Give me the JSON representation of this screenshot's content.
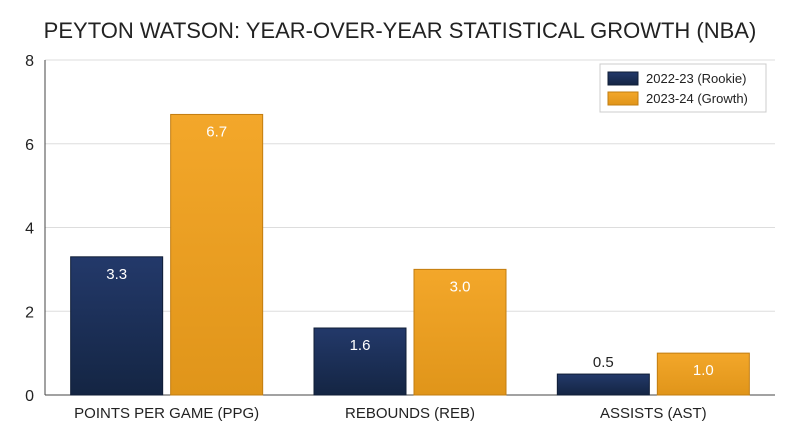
{
  "chart_data": {
    "type": "bar",
    "title": "PEYTON WATSON: YEAR-OVER-YEAR STATISTICAL GROWTH (NBA)",
    "categories": [
      "POINTS PER GAME (PPG)",
      "REBOUNDS (REB)",
      "ASSISTS (AST)"
    ],
    "series": [
      {
        "name": "2022-23 (Rookie)",
        "values": [
          3.3,
          1.6,
          0.5
        ],
        "labels": [
          "3.3",
          "1.6",
          "0.5"
        ],
        "color": "#1b2f55"
      },
      {
        "name": "2023-24 (Growth)",
        "values": [
          6.7,
          3.0,
          1.0
        ],
        "labels": [
          "6.7",
          "3.0",
          "1.0"
        ],
        "color": "#f0a21e"
      }
    ],
    "yticks": [
      0,
      2,
      4,
      6,
      8
    ],
    "ylim": [
      0,
      8
    ],
    "grid": true,
    "legend_position": "top-right",
    "xlabel": "",
    "ylabel": ""
  }
}
